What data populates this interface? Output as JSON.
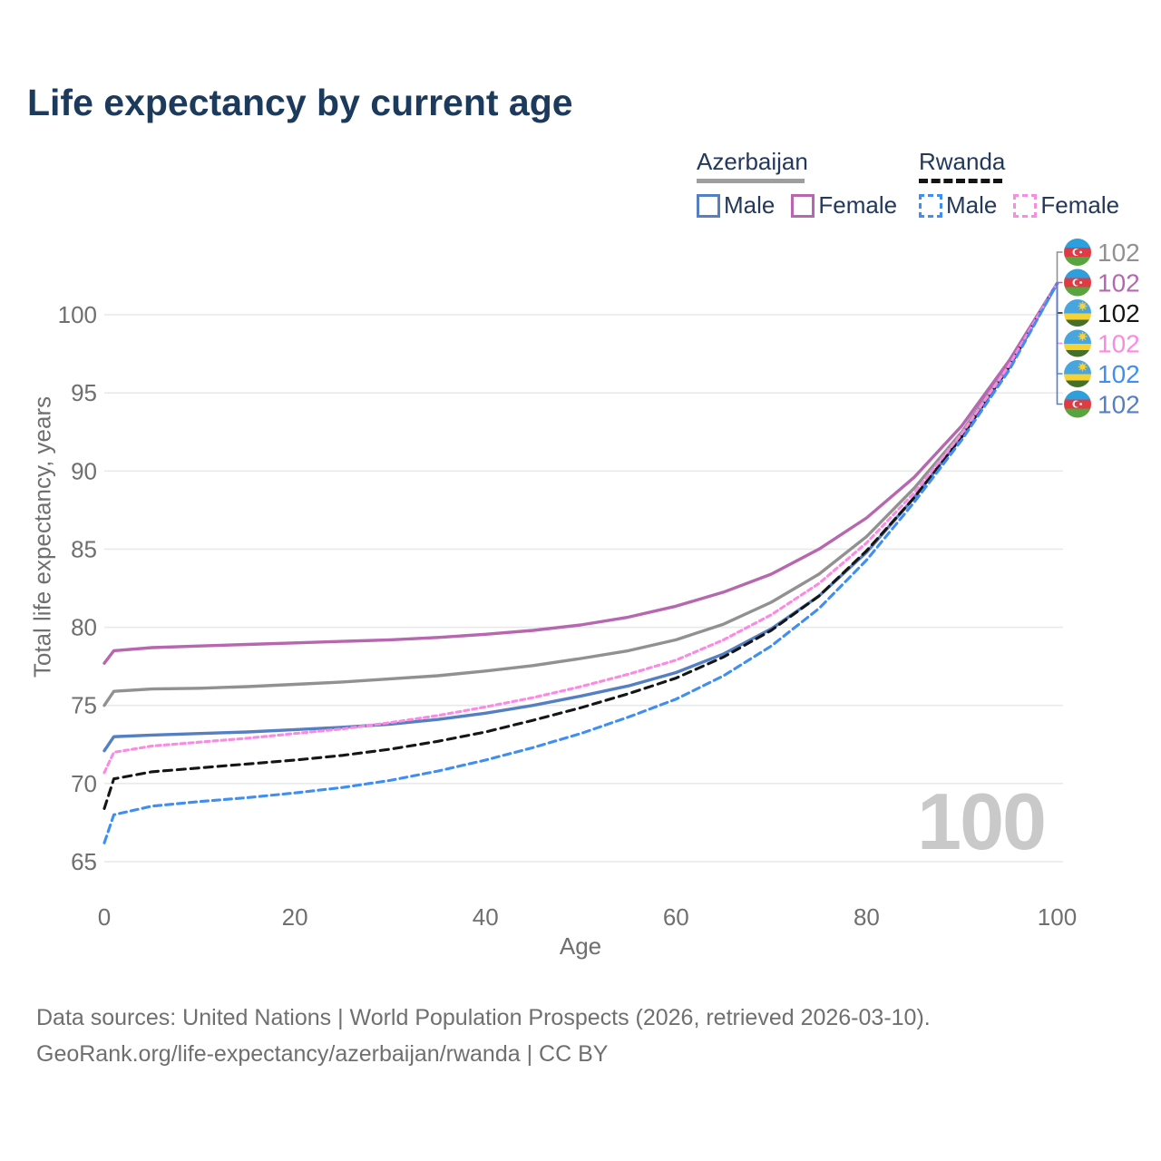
{
  "title": "Life expectancy by current age",
  "legend": {
    "groups": [
      {
        "label": "Azerbaijan",
        "style": "solid",
        "items": [
          {
            "label": "Male",
            "series_key": "az_male"
          },
          {
            "label": "Female",
            "series_key": "az_female"
          }
        ]
      },
      {
        "label": "Rwanda",
        "style": "dashed",
        "items": [
          {
            "label": "Male",
            "series_key": "rw_male"
          },
          {
            "label": "Female",
            "series_key": "rw_female"
          }
        ]
      }
    ]
  },
  "watermark": "100",
  "footer": {
    "line1": "Data sources: United Nations | World Population Prospects (2026, retrieved 2026-03-10).",
    "line2": "GeoRank.org/life-expectancy/azerbaijan/rwanda | CC BY"
  },
  "chart_data": {
    "type": "line",
    "title": "Life expectancy by current age",
    "xlabel": "Age",
    "ylabel": "Total life expectancy, years",
    "xlim": [
      0,
      100
    ],
    "ylim": [
      65,
      102
    ],
    "x_ticks": [
      0,
      20,
      40,
      60,
      80,
      100
    ],
    "y_ticks": [
      65,
      70,
      75,
      80,
      85,
      90,
      95,
      100
    ],
    "grid": "horizontal",
    "legend_position": "top-right",
    "ages": [
      0,
      1,
      5,
      10,
      15,
      20,
      25,
      30,
      35,
      40,
      45,
      50,
      55,
      60,
      65,
      70,
      75,
      80,
      85,
      90,
      95,
      100
    ],
    "series": [
      {
        "key": "az_total",
        "name": "Azerbaijan Total",
        "country": "azerbaijan",
        "sex": "total",
        "line": "solid",
        "color": "#919191",
        "dash": "",
        "end_label": "102",
        "values": [
          75.0,
          75.9,
          76.05,
          76.1,
          76.2,
          76.35,
          76.5,
          76.7,
          76.9,
          77.2,
          77.55,
          78.0,
          78.5,
          79.2,
          80.2,
          81.6,
          83.4,
          85.8,
          88.9,
          92.5,
          96.9,
          102
        ]
      },
      {
        "key": "az_female",
        "name": "Azerbaijan Female",
        "country": "azerbaijan",
        "sex": "female",
        "line": "solid",
        "color": "#b767b0",
        "dash": "",
        "end_label": "102",
        "values": [
          77.7,
          78.5,
          78.7,
          78.8,
          78.9,
          79.0,
          79.1,
          79.2,
          79.35,
          79.55,
          79.8,
          80.15,
          80.65,
          81.35,
          82.25,
          83.4,
          85.0,
          87.0,
          89.6,
          92.9,
          97.1,
          102
        ]
      },
      {
        "key": "rw_total",
        "name": "Rwanda Total",
        "country": "rwanda",
        "sex": "total",
        "line": "dashed",
        "color": "#151515",
        "dash": "9,6",
        "end_label": "102",
        "values": [
          68.4,
          70.3,
          70.75,
          71.0,
          71.25,
          71.5,
          71.8,
          72.2,
          72.7,
          73.3,
          74.05,
          74.85,
          75.75,
          76.75,
          78.1,
          79.8,
          82.0,
          84.9,
          88.3,
          92.2,
          96.7,
          102
        ]
      },
      {
        "key": "rw_female",
        "name": "Rwanda Female",
        "country": "rwanda",
        "sex": "female",
        "line": "dashed",
        "color": "#fb8ae2",
        "dash": "5,4",
        "end_label": "102",
        "values": [
          70.7,
          72.0,
          72.4,
          72.65,
          72.9,
          73.2,
          73.5,
          73.9,
          74.35,
          74.9,
          75.5,
          76.2,
          77.0,
          77.9,
          79.2,
          80.8,
          82.8,
          85.4,
          88.6,
          92.4,
          96.8,
          102
        ]
      },
      {
        "key": "rw_male",
        "name": "Rwanda Male",
        "country": "rwanda",
        "sex": "male",
        "line": "dashed",
        "color": "#3f8ef4",
        "dash": "8,5",
        "end_label": "102",
        "values": [
          66.2,
          68.0,
          68.55,
          68.85,
          69.1,
          69.4,
          69.75,
          70.2,
          70.8,
          71.5,
          72.3,
          73.2,
          74.25,
          75.4,
          76.9,
          78.8,
          81.2,
          84.3,
          88.0,
          92.0,
          96.5,
          102
        ]
      },
      {
        "key": "az_male",
        "name": "Azerbaijan Male",
        "country": "azerbaijan",
        "sex": "male",
        "line": "solid",
        "color": "#557fc3",
        "dash": "",
        "end_label": "102",
        "values": [
          72.1,
          73.0,
          73.1,
          73.2,
          73.3,
          73.45,
          73.6,
          73.8,
          74.1,
          74.5,
          75.0,
          75.6,
          76.25,
          77.1,
          78.3,
          79.9,
          82.0,
          84.8,
          88.3,
          92.2,
          96.7,
          102
        ]
      }
    ],
    "colors": {
      "azerbaijan_male": "#557fc3",
      "azerbaijan_female": "#b767b0",
      "azerbaijan_total": "#919191",
      "rwanda_male": "#3f8ef4",
      "rwanda_female": "#fb8ae2",
      "rwanda_total": "#151515",
      "gridline": "#e9e9e9",
      "axis_text": "#6f6f6f",
      "title_text": "#1c3a5c",
      "watermark": "#c9c9c9"
    }
  }
}
